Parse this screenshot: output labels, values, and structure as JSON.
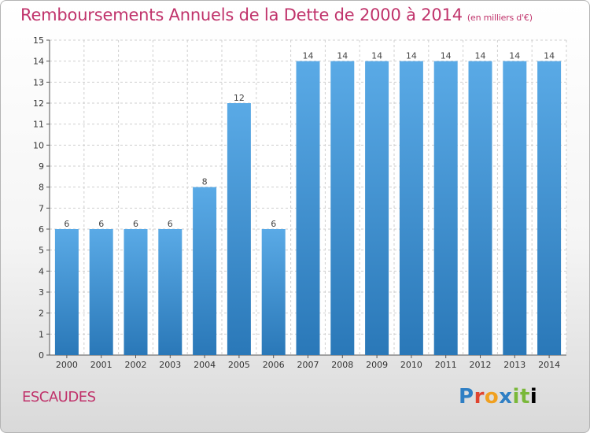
{
  "header": {
    "title": "Remboursements Annuels de la Dette de 2000 à 2014",
    "subtitle": "(en milliers d'€)"
  },
  "footer": {
    "commune": "ESCAUDES",
    "logo_letters": [
      "P",
      "r",
      "o",
      "x",
      "i",
      "t",
      "i"
    ]
  },
  "colors": {
    "title": "#c0336b",
    "bar_top": "#5aaae6",
    "bar_bottom": "#2a78b8"
  },
  "chart_data": {
    "type": "bar",
    "title": "Remboursements Annuels de la Dette de 2000 à 2014",
    "subtitle": "(en milliers d'€)",
    "xlabel": "",
    "ylabel": "",
    "categories": [
      "2000",
      "2001",
      "2002",
      "2003",
      "2004",
      "2005",
      "2006",
      "2007",
      "2008",
      "2009",
      "2010",
      "2011",
      "2012",
      "2013",
      "2014"
    ],
    "values": [
      6,
      6,
      6,
      6,
      8,
      12,
      6,
      14,
      14,
      14,
      14,
      14,
      14,
      14,
      14
    ],
    "ylim": [
      0,
      15
    ],
    "yticks": [
      0,
      1,
      2,
      3,
      4,
      5,
      6,
      7,
      8,
      9,
      10,
      11,
      12,
      13,
      14,
      15
    ],
    "grid": true,
    "legend": "none"
  }
}
